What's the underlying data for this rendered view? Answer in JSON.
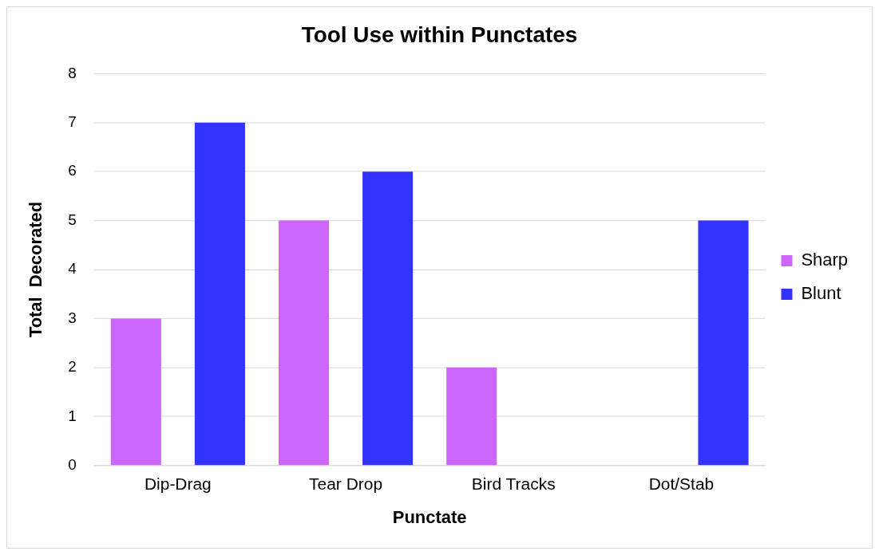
{
  "chart_data": {
    "type": "bar",
    "title": "Tool Use within Punctates",
    "xlabel": "Punctate",
    "ylabel": "Total  Decorated",
    "categories": [
      "Dip-Drag",
      "Tear Drop",
      "Bird Tracks",
      "Dot/Stab"
    ],
    "series": [
      {
        "name": "Sharp",
        "color": "#cc66ff",
        "values": [
          3,
          5,
          2,
          0
        ]
      },
      {
        "name": "Blunt",
        "color": "#3333ff",
        "values": [
          7,
          6,
          0,
          5
        ]
      }
    ],
    "ylim": [
      0,
      8
    ],
    "yticks": [
      0,
      1,
      2,
      3,
      4,
      5,
      6,
      7,
      8
    ],
    "grid": "y",
    "legend": "right"
  }
}
